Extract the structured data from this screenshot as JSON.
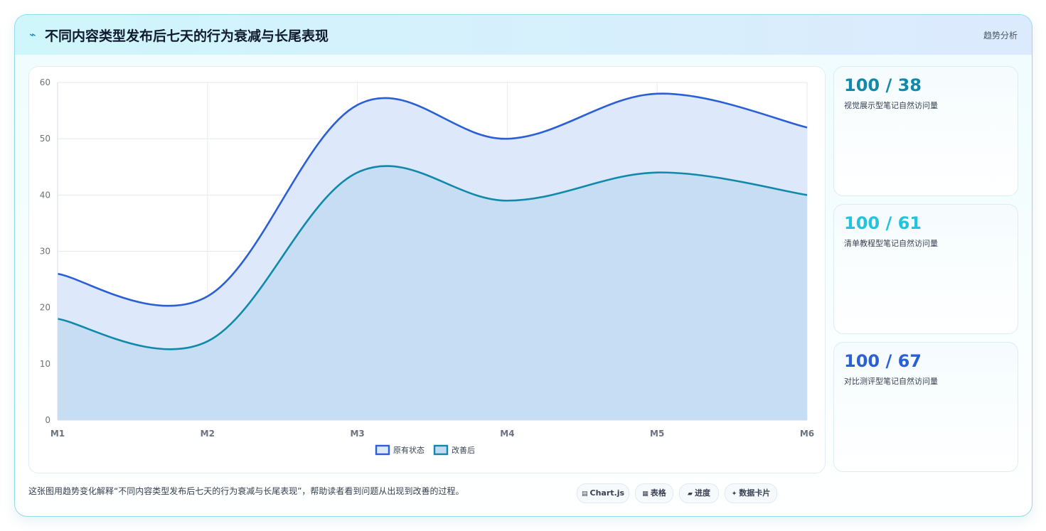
{
  "header": {
    "icon": "⌁",
    "title": "不同内容类型发布后七天的行为衰减与长尾表现",
    "tag": "趋势分析"
  },
  "chart_data": {
    "type": "area",
    "categories": [
      "M1",
      "M2",
      "M3",
      "M4",
      "M5",
      "M6"
    ],
    "ylim": [
      0,
      60
    ],
    "yticks": [
      0,
      10,
      20,
      30,
      40,
      50,
      60
    ],
    "grid": true,
    "legend_position": "bottom",
    "series": [
      {
        "name": "原有状态",
        "values": [
          26,
          22,
          56,
          50,
          58,
          52
        ],
        "color": "#2a5fd6",
        "fill": "#dde8fb"
      },
      {
        "name": "改善后",
        "values": [
          18,
          14,
          44,
          39,
          44,
          40
        ],
        "color": "#1089aa",
        "fill": "#c3dbf2"
      }
    ]
  },
  "stats": [
    {
      "value": "100 / 38",
      "label": "视觉展示型笔记自然访问量",
      "color": "#1089aa"
    },
    {
      "value": "100 / 61",
      "label": "清单教程型笔记自然访问量",
      "color": "#22c3dd"
    },
    {
      "value": "100 / 67",
      "label": "对比测评型笔记自然访问量",
      "color": "#2a5fd6"
    }
  ],
  "caption": "这张图用趋势变化解释“不同内容类型发布后七天的行为衰减与长尾表现”，帮助读者看到问题从出现到改善的过程。",
  "chips": [
    {
      "icon": "▤",
      "label": "Chart.js"
    },
    {
      "icon": "▦",
      "label": "表格"
    },
    {
      "icon": "▰",
      "label": "进度"
    },
    {
      "icon": "✦",
      "label": "数据卡片"
    }
  ]
}
